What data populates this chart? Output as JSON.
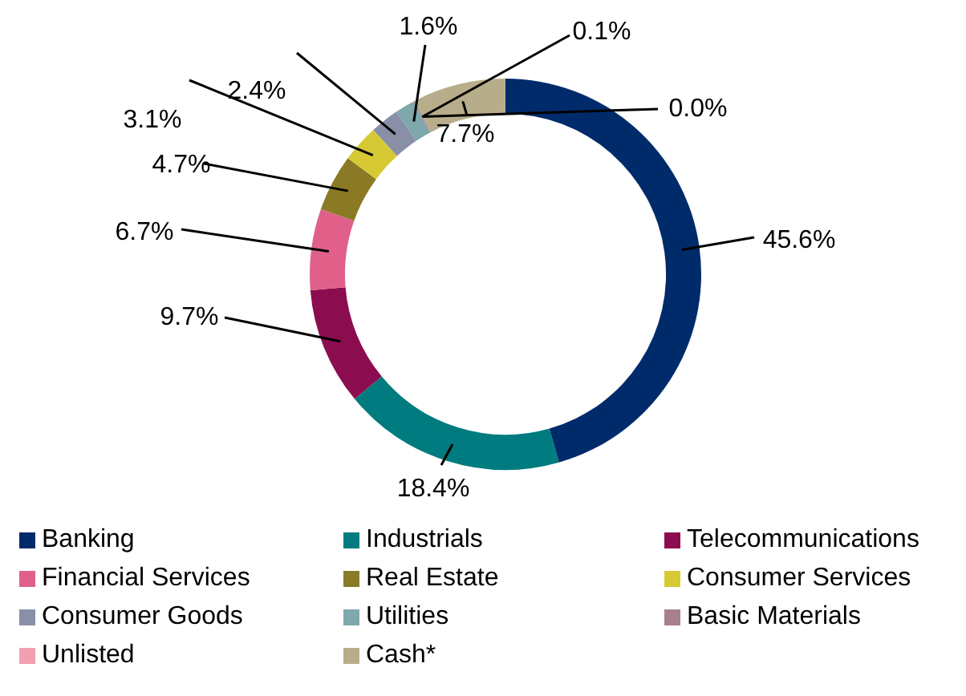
{
  "chart_data": {
    "type": "donut",
    "categories": [
      "Banking",
      "Industrials",
      "Telecommunications",
      "Financial Services",
      "Real Estate",
      "Consumer Services",
      "Consumer Goods",
      "Utilities",
      "Basic Materials",
      "Unlisted",
      "Cash*"
    ],
    "values": [
      45.6,
      18.4,
      9.7,
      6.7,
      4.7,
      3.1,
      2.4,
      1.6,
      0.1,
      0.0,
      7.7
    ],
    "colors": [
      "#002b6b",
      "#007b7f",
      "#8b0d4f",
      "#e0608a",
      "#8a7a25",
      "#d7c934",
      "#8a8fa8",
      "#7fa8ac",
      "#a88090",
      "#f0a0b0",
      "#b8ad8a"
    ],
    "value_labels": [
      "45.6%",
      "18.4%",
      "9.7%",
      "6.7%",
      "4.7%",
      "3.1%",
      "2.4%",
      "1.6%",
      "0.1%",
      "0.0%",
      "7.7%"
    ],
    "legend": "bottom"
  }
}
